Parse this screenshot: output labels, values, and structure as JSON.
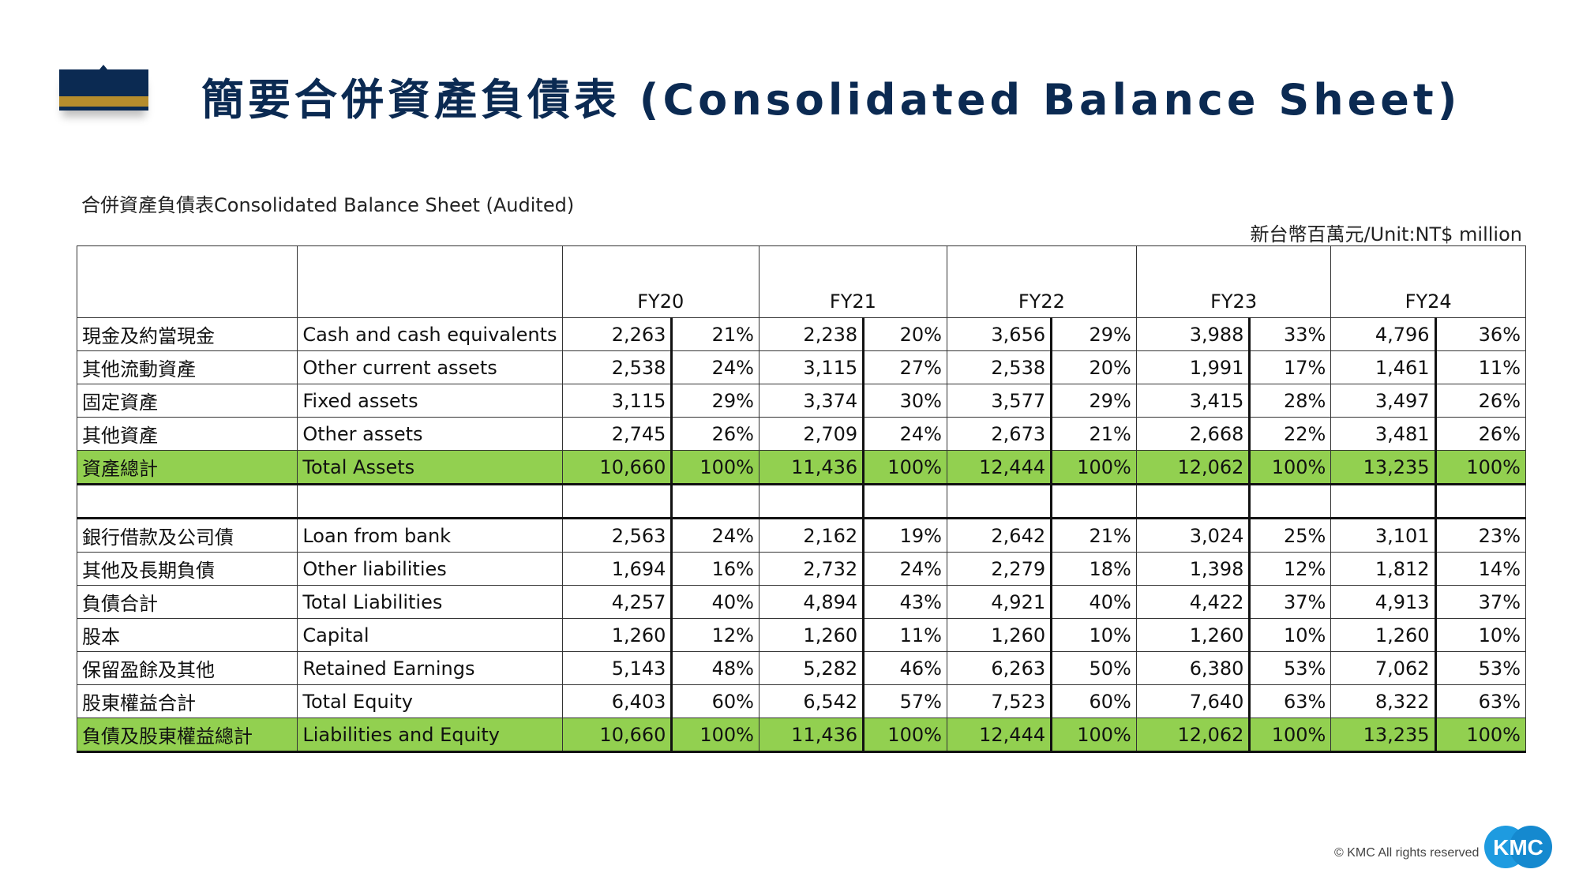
{
  "title": "簡要合併資產負債表 (Consolidated Balance Sheet)",
  "subtitle": "合併資產負債表Consolidated Balance Sheet (Audited)",
  "unit": "新台幣百萬元/Unit:NT$ million",
  "years": [
    "FY20",
    "FY21",
    "FY22",
    "FY23",
    "FY24"
  ],
  "assets": [
    {
      "zh": "現金及約當現金",
      "en": "Cash and cash equivalents",
      "vals": [
        "2,263",
        "21%",
        "2,238",
        "20%",
        "3,656",
        "29%",
        "3,988",
        "33%",
        "4,796",
        "36%"
      ]
    },
    {
      "zh": "其他流動資產",
      "en": "Other current assets",
      "vals": [
        "2,538",
        "24%",
        "3,115",
        "27%",
        "2,538",
        "20%",
        "1,991",
        "17%",
        "1,461",
        "11%"
      ]
    },
    {
      "zh": "固定資產",
      "en": "Fixed assets",
      "vals": [
        "3,115",
        "29%",
        "3,374",
        "30%",
        "3,577",
        "29%",
        "3,415",
        "28%",
        "3,497",
        "26%"
      ]
    },
    {
      "zh": "其他資產",
      "en": "Other assets",
      "vals": [
        "2,745",
        "26%",
        "2,709",
        "24%",
        "2,673",
        "21%",
        "2,668",
        "22%",
        "3,481",
        "26%"
      ]
    },
    {
      "zh": "資產總計",
      "en": "Total Assets",
      "total": true,
      "vals": [
        "10,660",
        "100%",
        "11,436",
        "100%",
        "12,444",
        "100%",
        "12,062",
        "100%",
        "13,235",
        "100%"
      ]
    }
  ],
  "liabilities": [
    {
      "zh": "銀行借款及公司債",
      "en": "Loan from bank",
      "vals": [
        "2,563",
        "24%",
        "2,162",
        "19%",
        "2,642",
        "21%",
        "3,024",
        "25%",
        "3,101",
        "23%"
      ]
    },
    {
      "zh": "其他及長期負債",
      "en": "Other liabilities",
      "vals": [
        "1,694",
        "16%",
        "2,732",
        "24%",
        "2,279",
        "18%",
        "1,398",
        "12%",
        "1,812",
        "14%"
      ]
    },
    {
      "zh": "負債合計",
      "en": "Total Liabilities",
      "vals": [
        "4,257",
        "40%",
        "4,894",
        "43%",
        "4,921",
        "40%",
        "4,422",
        "37%",
        "4,913",
        "37%"
      ]
    },
    {
      "zh": "股本",
      "en": "Capital",
      "vals": [
        "1,260",
        "12%",
        "1,260",
        "11%",
        "1,260",
        "10%",
        "1,260",
        "10%",
        "1,260",
        "10%"
      ]
    },
    {
      "zh": "保留盈餘及其他",
      "en": "Retained Earnings",
      "vals": [
        "5,143",
        "48%",
        "5,282",
        "46%",
        "6,263",
        "50%",
        "6,380",
        "53%",
        "7,062",
        "53%"
      ]
    },
    {
      "zh": "股東權益合計",
      "en": "Total Equity",
      "vals": [
        "6,403",
        "60%",
        "6,542",
        "57%",
        "7,523",
        "60%",
        "7,640",
        "63%",
        "8,322",
        "63%"
      ]
    },
    {
      "zh": "負債及股東權益總計",
      "en": "Liabilities and Equity",
      "total": true,
      "vals": [
        "10,660",
        "100%",
        "11,436",
        "100%",
        "12,444",
        "100%",
        "12,062",
        "100%",
        "13,235",
        "100%"
      ]
    }
  ],
  "footer": {
    "copyright": "© KMC All rights reserved",
    "logo_text": "KMC"
  }
}
